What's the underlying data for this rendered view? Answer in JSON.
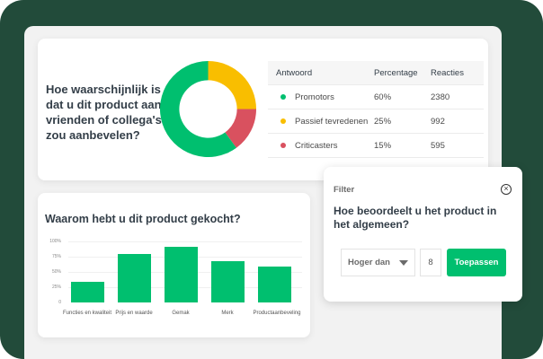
{
  "colors": {
    "background": "#224b3a",
    "panel": "#f2f2f2",
    "promotors": "#00bf6f",
    "passive": "#f9be00",
    "detractors": "#d9515f",
    "accent": "#00bf6f"
  },
  "nps_card": {
    "question": "Hoe waarschijnlijk is dat u dit product aan vrienden of collega's zou aanbevelen?",
    "table": {
      "headers": [
        "Antwoord",
        "Percentage",
        "Reacties"
      ],
      "rows": [
        {
          "label": "Promotors",
          "percentage": "60%",
          "count": "2380",
          "color": "#00bf6f"
        },
        {
          "label": "Passief tevredenen",
          "percentage": "25%",
          "count": "992",
          "color": "#f9be00"
        },
        {
          "label": "Criticasters",
          "percentage": "15%",
          "count": "595",
          "color": "#d9515f"
        }
      ]
    }
  },
  "bar_card": {
    "question": "Waarom hebt u dit product gekocht?",
    "y_ticks": [
      "100%",
      "75%",
      "50%",
      "25%",
      "0"
    ],
    "x_labels": [
      "Functies en kwaliteit",
      "Prijs en waarde",
      "Gemak",
      "Merk",
      "Productaanbeveling"
    ]
  },
  "filter": {
    "title": "Filter",
    "question": "Hoe beoordeelt u het product in het algemeen?",
    "operator": "Hoger dan",
    "value": "8",
    "apply_label": "Toepassen",
    "close_icon": "close-circle-icon"
  },
  "chart_data": [
    {
      "type": "pie",
      "title": "Hoe waarschijnlijk is dat u dit product aan vrienden of collega's zou aanbevelen?",
      "categories": [
        "Promotors",
        "Passief tevredenen",
        "Criticasters"
      ],
      "values": [
        60,
        25,
        15
      ],
      "counts": [
        2380,
        992,
        595
      ],
      "colors": [
        "#00bf6f",
        "#f9be00",
        "#d9515f"
      ],
      "donut": true
    },
    {
      "type": "bar",
      "title": "Waarom hebt u dit product gekocht?",
      "categories": [
        "Functies en kwaliteit",
        "Prijs en waarde",
        "Gemak",
        "Merk",
        "Productaanbeveling"
      ],
      "values": [
        34,
        79,
        91,
        68,
        59
      ],
      "xlabel": "",
      "ylabel": "",
      "ylim": [
        0,
        100
      ],
      "y_ticks": [
        "0",
        "25%",
        "50%",
        "75%",
        "100%"
      ],
      "grid": true,
      "color": "#00bf6f"
    }
  ]
}
